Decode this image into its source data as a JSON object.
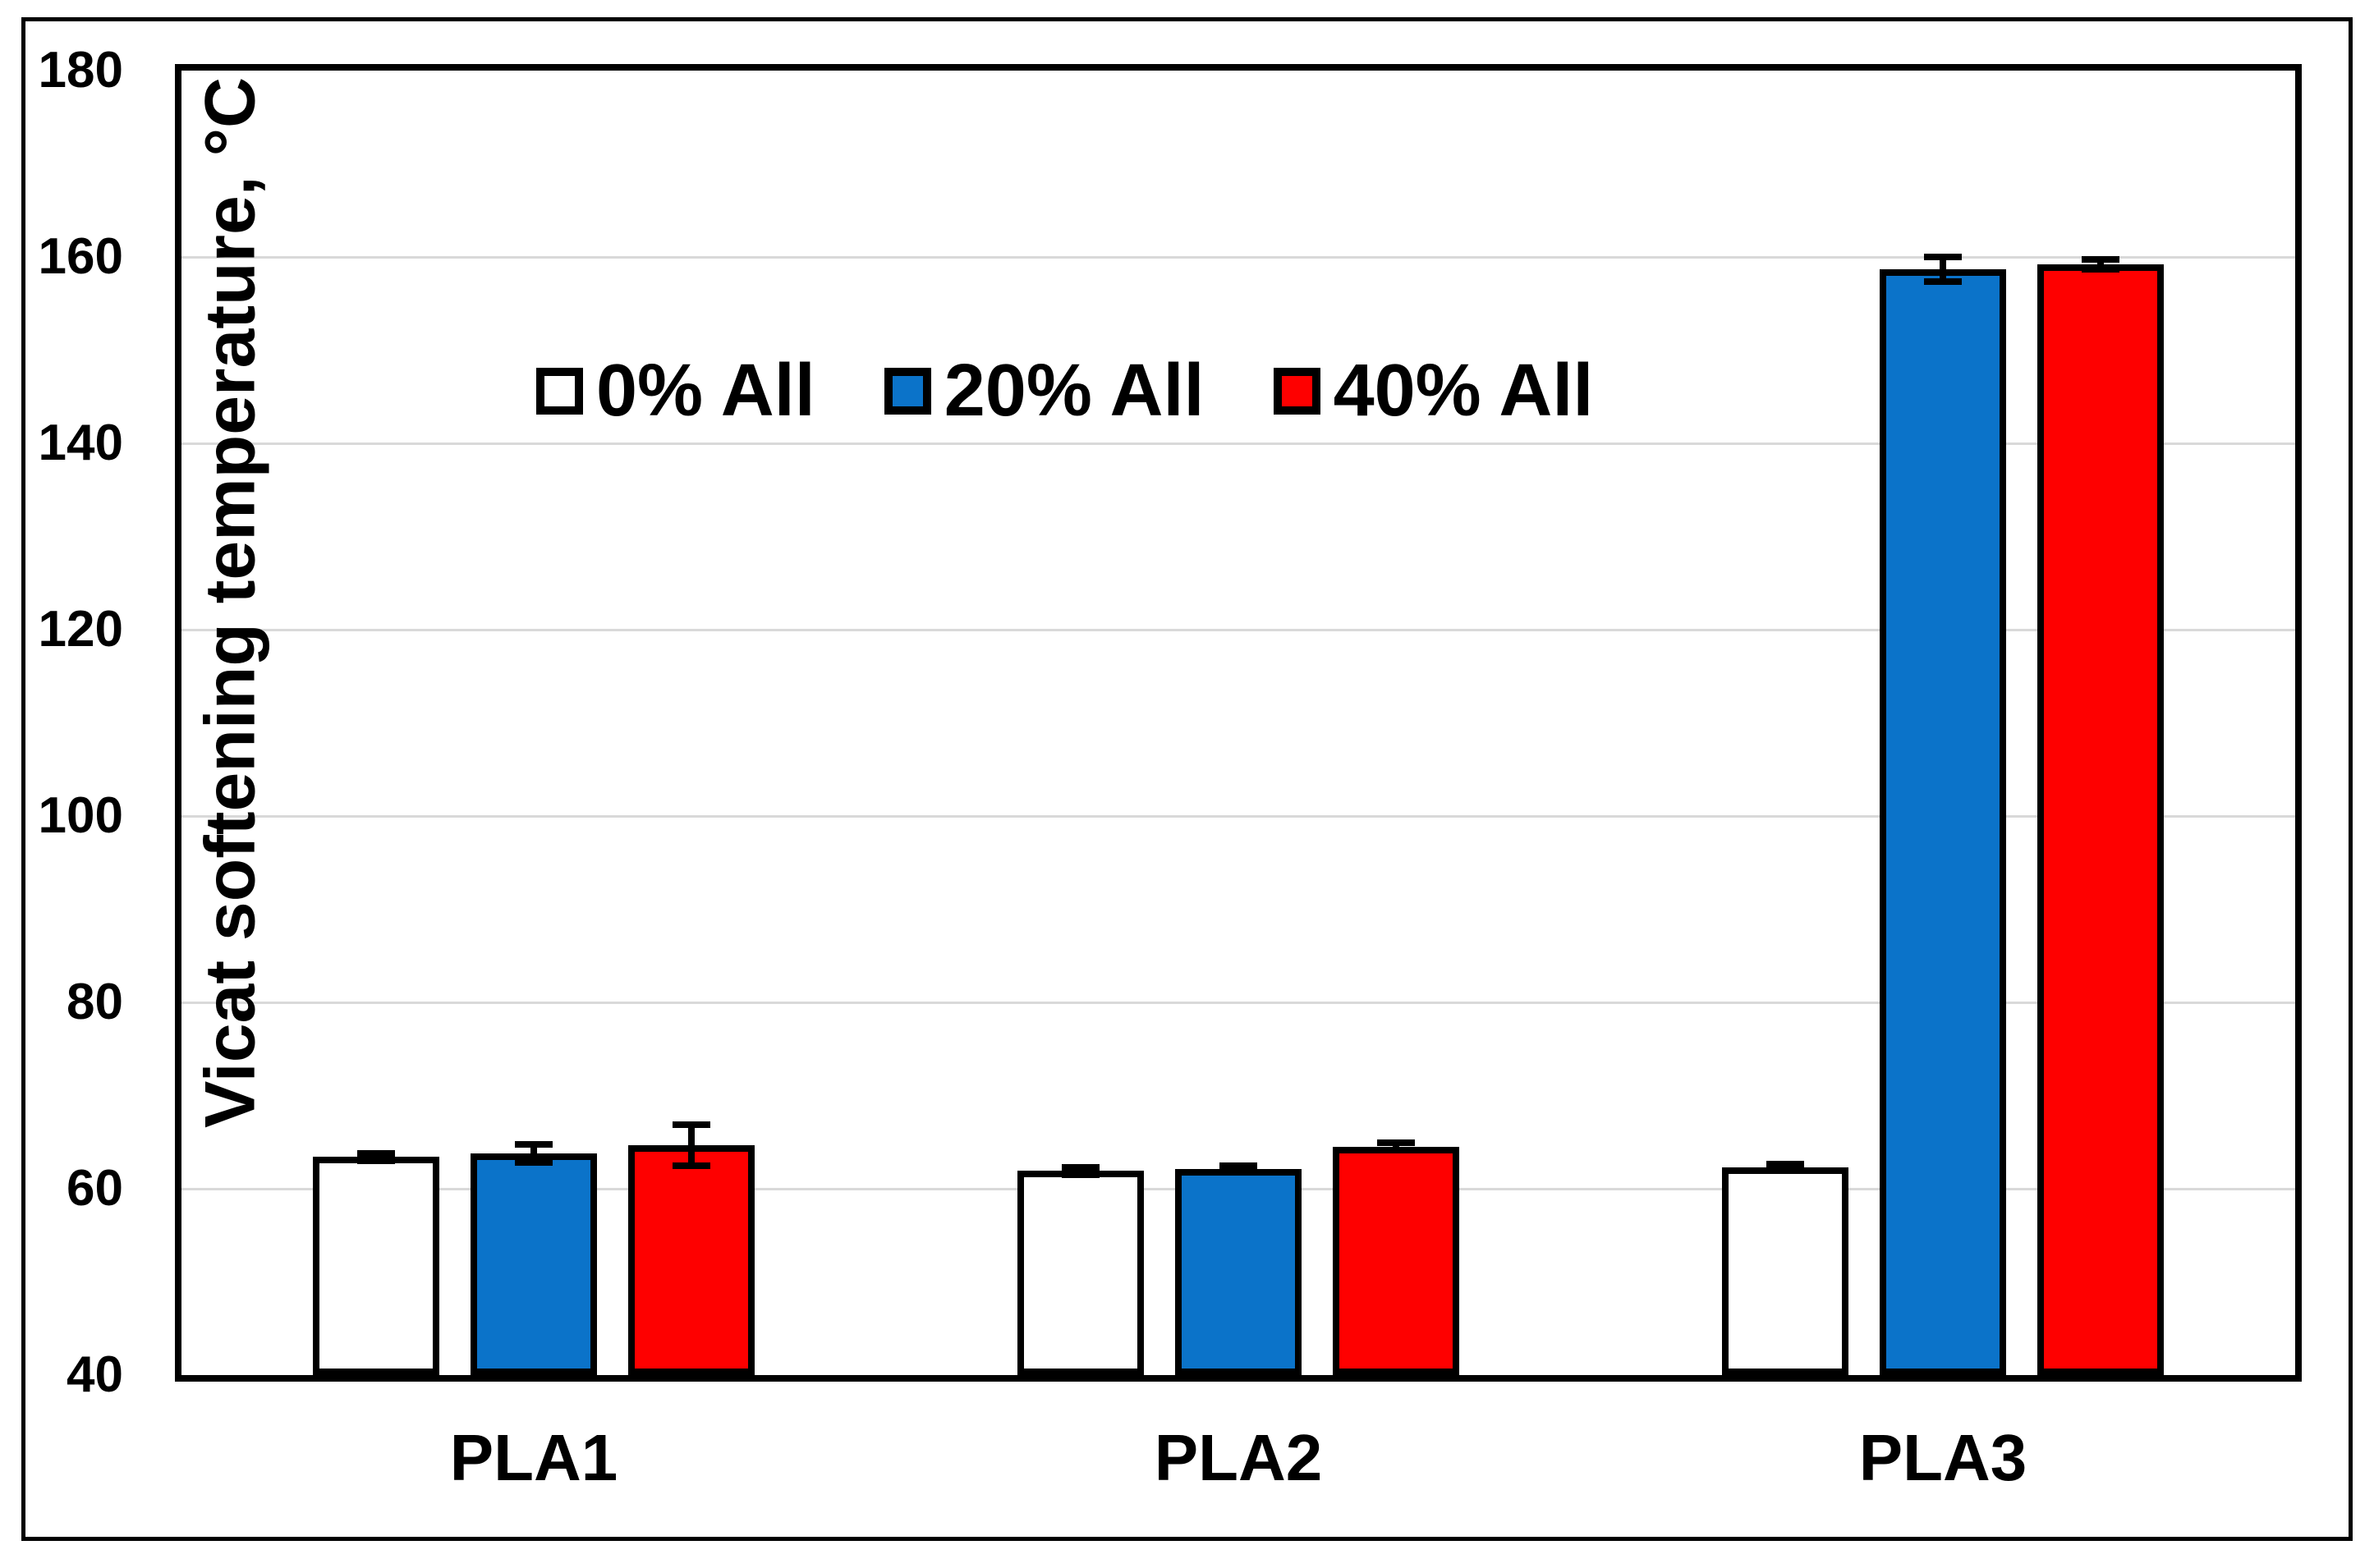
{
  "figure": {
    "background": "#FFFFFF",
    "border_color": "#000000"
  },
  "chart_data": {
    "type": "bar",
    "title": "",
    "ylabel": "Vicat softening temperature, °C",
    "xlabel": "",
    "categories": [
      "PLA1",
      "PLA2",
      "PLA3"
    ],
    "series": [
      {
        "name": "0% All",
        "color": "#FFFFFF",
        "values": [
          63.4,
          61.9,
          62.3
        ],
        "errors": [
          0.4,
          0.4,
          0.3
        ]
      },
      {
        "name": "20% All",
        "color": "#0B73C9",
        "values": [
          63.8,
          62.1,
          158.7
        ],
        "errors": [
          1.0,
          0.3,
          1.3
        ]
      },
      {
        "name": "40% All",
        "color": "#FE0000",
        "values": [
          64.7,
          64.5,
          159.2
        ],
        "errors": [
          2.2,
          0.4,
          0.5
        ]
      }
    ],
    "ylim": [
      40,
      180
    ],
    "yticks": [
      40,
      60,
      80,
      100,
      120,
      140,
      160,
      180
    ],
    "grid": true,
    "gridline_color": "#D9D9D9",
    "bar_border_color": "#000000",
    "error_bar_color": "#000000",
    "legend_position": "inside-top-left"
  }
}
